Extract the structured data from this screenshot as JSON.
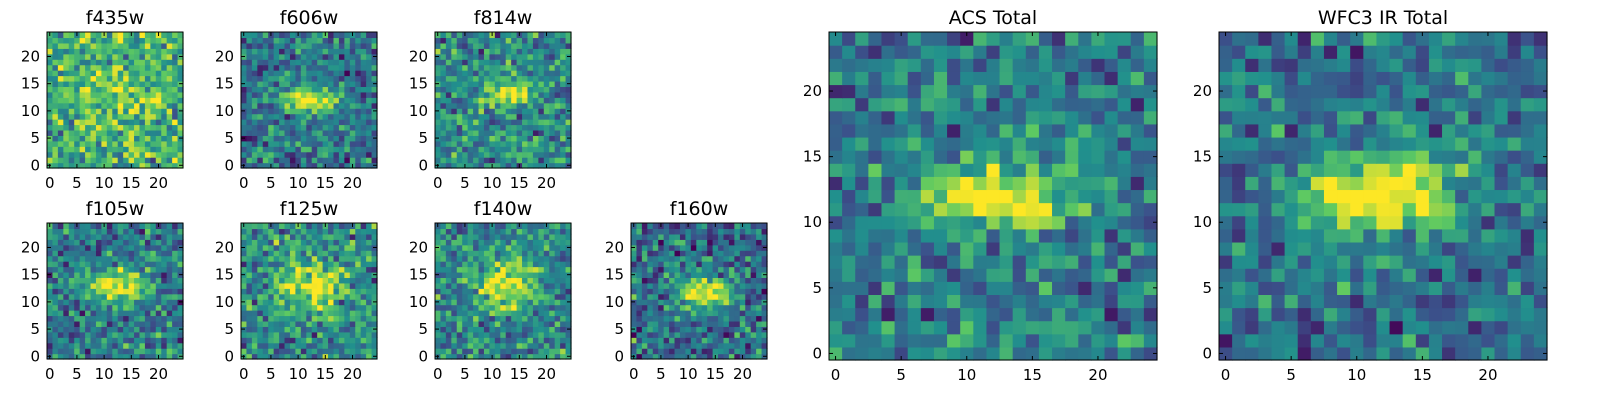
{
  "colormap": [
    "#440154",
    "#3b528b",
    "#21908d",
    "#5dc962",
    "#fde725"
  ],
  "chart_data": [
    {
      "type": "heatmap",
      "title": "f435w",
      "grid": [
        25,
        25
      ],
      "xlim": [
        0,
        25
      ],
      "ylim": [
        0,
        25
      ],
      "xticks": [
        0,
        5,
        10,
        15,
        20
      ],
      "yticks": [
        0,
        5,
        10,
        15,
        20
      ],
      "xtick_labels": [
        "0",
        "5",
        "10",
        "15",
        "20"
      ],
      "ytick_labels": [
        "0",
        "5",
        "10",
        "15",
        "20"
      ],
      "peak": {
        "x": 12,
        "y": 13
      },
      "peak_strength": 0.15,
      "source_size": [
        5,
        3
      ],
      "background": 0.64,
      "noise": 0.24
    },
    {
      "type": "heatmap",
      "title": "f606w",
      "grid": [
        25,
        25
      ],
      "xlim": [
        0,
        25
      ],
      "ylim": [
        0,
        25
      ],
      "xticks": [
        0,
        5,
        10,
        15,
        20
      ],
      "yticks": [
        0,
        5,
        10,
        15,
        20
      ],
      "xtick_labels": [
        "0",
        "5",
        "10",
        "15",
        "20"
      ],
      "ytick_labels": [
        "0",
        "5",
        "10",
        "15",
        "20"
      ],
      "peak": {
        "x": 12,
        "y": 12
      },
      "peak_strength": 0.55,
      "source_size": [
        4,
        1.6
      ],
      "background": 0.4,
      "noise": 0.22
    },
    {
      "type": "heatmap",
      "title": "f814w",
      "grid": [
        25,
        25
      ],
      "xlim": [
        0,
        25
      ],
      "ylim": [
        0,
        25
      ],
      "xticks": [
        0,
        5,
        10,
        15,
        20
      ],
      "yticks": [
        0,
        5,
        10,
        15,
        20
      ],
      "xtick_labels": [
        "0",
        "5",
        "10",
        "15",
        "20"
      ],
      "ytick_labels": [
        "0",
        "5",
        "10",
        "15",
        "20"
      ],
      "peak": {
        "x": 13,
        "y": 13
      },
      "peak_strength": 0.45,
      "source_size": [
        3.5,
        1.6
      ],
      "background": 0.48,
      "noise": 0.22
    },
    {
      "type": "heatmap",
      "title": "f105w",
      "grid": [
        25,
        25
      ],
      "xlim": [
        0,
        25
      ],
      "ylim": [
        0,
        25
      ],
      "xticks": [
        0,
        5,
        10,
        15,
        20
      ],
      "yticks": [
        0,
        5,
        10,
        15,
        20
      ],
      "xtick_labels": [
        "0",
        "5",
        "10",
        "15",
        "20"
      ],
      "ytick_labels": [
        "0",
        "5",
        "10",
        "15",
        "20"
      ],
      "peak": {
        "x": 12,
        "y": 13
      },
      "peak_strength": 0.6,
      "source_size": [
        4,
        2
      ],
      "background": 0.42,
      "noise": 0.22
    },
    {
      "type": "heatmap",
      "title": "f125w",
      "grid": [
        25,
        25
      ],
      "xlim": [
        0,
        25
      ],
      "ylim": [
        0,
        25
      ],
      "xticks": [
        0,
        5,
        10,
        15,
        20
      ],
      "yticks": [
        0,
        5,
        10,
        15,
        20
      ],
      "xtick_labels": [
        "0",
        "5",
        "10",
        "15",
        "20"
      ],
      "ytick_labels": [
        "0",
        "5",
        "10",
        "15",
        "20"
      ],
      "peak": {
        "x": 12,
        "y": 13
      },
      "peak_strength": 0.45,
      "source_size": [
        4,
        3
      ],
      "background": 0.5,
      "noise": 0.24
    },
    {
      "type": "heatmap",
      "title": "f140w",
      "grid": [
        25,
        25
      ],
      "xlim": [
        0,
        25
      ],
      "ylim": [
        0,
        25
      ],
      "xticks": [
        0,
        5,
        10,
        15,
        20
      ],
      "yticks": [
        0,
        5,
        10,
        15,
        20
      ],
      "xtick_labels": [
        "0",
        "5",
        "10",
        "15",
        "20"
      ],
      "ytick_labels": [
        "0",
        "5",
        "10",
        "15",
        "20"
      ],
      "peak": {
        "x": 13,
        "y": 13
      },
      "peak_strength": 0.5,
      "source_size": [
        4,
        3
      ],
      "background": 0.46,
      "noise": 0.22
    },
    {
      "type": "heatmap",
      "title": "f160w",
      "grid": [
        25,
        25
      ],
      "xlim": [
        0,
        25
      ],
      "ylim": [
        0,
        25
      ],
      "xticks": [
        0,
        5,
        10,
        15,
        20
      ],
      "yticks": [
        0,
        5,
        10,
        15,
        20
      ],
      "xtick_labels": [
        "0",
        "5",
        "10",
        "15",
        "20"
      ],
      "ytick_labels": [
        "0",
        "5",
        "10",
        "15",
        "20"
      ],
      "peak": {
        "x": 13,
        "y": 12
      },
      "peak_strength": 0.65,
      "source_size": [
        4,
        1.8
      ],
      "background": 0.36,
      "noise": 0.24
    },
    {
      "type": "heatmap",
      "title": "ACS Total",
      "grid": [
        25,
        25
      ],
      "xlim": [
        0,
        25
      ],
      "ylim": [
        0,
        25
      ],
      "xticks": [
        0,
        5,
        10,
        15,
        20
      ],
      "yticks": [
        0,
        5,
        10,
        15,
        20
      ],
      "xtick_labels": [
        "0",
        "5",
        "10",
        "15",
        "20"
      ],
      "ytick_labels": [
        "0",
        "5",
        "10",
        "15",
        "20"
      ],
      "peak": {
        "x": 13,
        "y": 12
      },
      "peak_strength": 0.6,
      "source_size": [
        4,
        1.6
      ],
      "background": 0.42,
      "noise": 0.2
    },
    {
      "type": "heatmap",
      "title": "WFC3 IR Total",
      "grid": [
        25,
        25
      ],
      "xlim": [
        0,
        25
      ],
      "ylim": [
        0,
        25
      ],
      "xticks": [
        0,
        5,
        10,
        15,
        20
      ],
      "yticks": [
        0,
        5,
        10,
        15,
        20
      ],
      "xtick_labels": [
        "0",
        "5",
        "10",
        "15",
        "20"
      ],
      "ytick_labels": [
        "0",
        "5",
        "10",
        "15",
        "20"
      ],
      "peak": {
        "x": 12,
        "y": 12
      },
      "peak_strength": 0.65,
      "source_size": [
        4.5,
        2
      ],
      "background": 0.38,
      "noise": 0.2
    }
  ]
}
